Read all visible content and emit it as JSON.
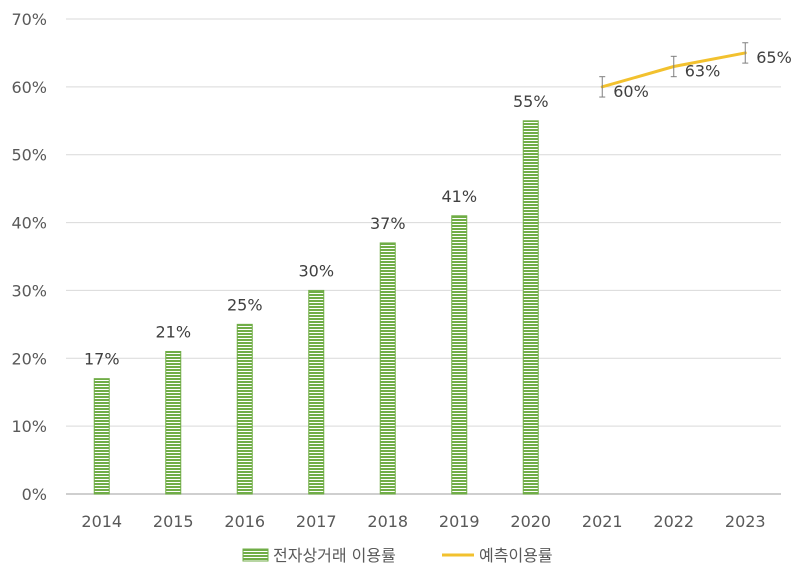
{
  "chart_data": {
    "type": "bar",
    "categories": [
      "2014",
      "2015",
      "2016",
      "2017",
      "2018",
      "2019",
      "2020",
      "2021",
      "2022",
      "2023"
    ],
    "series": [
      {
        "name": "전자상거래 이용률",
        "kind": "bar",
        "color": "#70AD47",
        "values": [
          17,
          21,
          25,
          30,
          37,
          41,
          55,
          null,
          null,
          null
        ],
        "labels": [
          "17%",
          "21%",
          "25%",
          "30%",
          "37%",
          "41%",
          "55%",
          "",
          "",
          ""
        ]
      },
      {
        "name": "예측이용률",
        "kind": "line",
        "color": "#F2C12E",
        "values": [
          null,
          null,
          null,
          null,
          null,
          null,
          null,
          60,
          63,
          65
        ],
        "labels": [
          "",
          "",
          "",
          "",
          "",
          "",
          "",
          "60%",
          "63%",
          "65%"
        ],
        "error_bar": 1.5
      }
    ],
    "ylim": [
      0,
      70
    ],
    "yticks": [
      0,
      10,
      20,
      30,
      40,
      50,
      60,
      70
    ],
    "ytick_labels": [
      "0%",
      "10%",
      "20%",
      "30%",
      "40%",
      "50%",
      "60%",
      "70%"
    ],
    "grid": true,
    "legend_position": "bottom",
    "title": "",
    "xlabel": "",
    "ylabel": ""
  }
}
